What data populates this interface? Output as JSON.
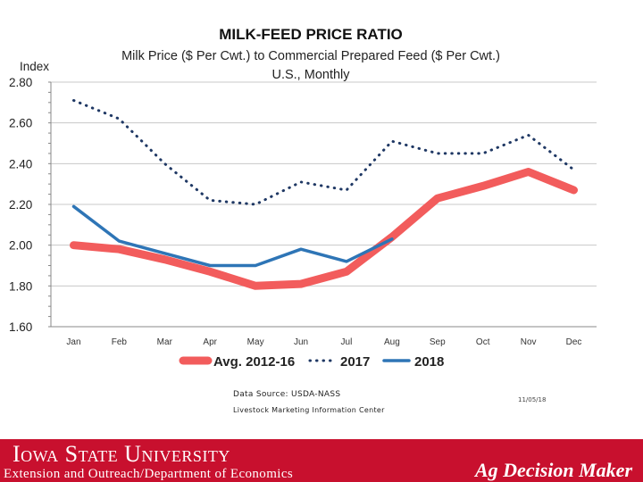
{
  "chart_data": {
    "type": "line",
    "title": "MILK-FEED PRICE RATIO",
    "subtitle_lines": [
      "Milk Price ($ Per Cwt.) to Commercial Prepared Feed ($ Per Cwt.)",
      "U.S., Monthly"
    ],
    "ylabel": "Index",
    "ylim": [
      1.6,
      2.8
    ],
    "yticks": [
      "2.80",
      "2.60",
      "2.40",
      "2.20",
      "2.00",
      "1.80",
      "1.60"
    ],
    "ytick_values": [
      2.8,
      2.6,
      2.4,
      2.2,
      2.0,
      1.8,
      1.6
    ],
    "categories": [
      "Jan",
      "Feb",
      "Mar",
      "Apr",
      "May",
      "Jun",
      "Jul",
      "Aug",
      "Sep",
      "Oct",
      "Nov",
      "Dec"
    ],
    "grid": true,
    "legend_position": "bottom",
    "series": [
      {
        "name": "Avg. 2012-16",
        "color": "#f25c5c",
        "style": "thick",
        "values": [
          2.0,
          1.98,
          1.93,
          1.87,
          1.8,
          1.81,
          1.87,
          2.04,
          2.23,
          2.29,
          2.36,
          2.27
        ]
      },
      {
        "name": "2017",
        "color": "#1f3864",
        "style": "dotted",
        "values": [
          2.71,
          2.62,
          2.4,
          2.22,
          2.2,
          2.31,
          2.27,
          2.51,
          2.45,
          2.45,
          2.54,
          2.37
        ]
      },
      {
        "name": "2018",
        "color": "#2e75b6",
        "style": "solid",
        "values": [
          2.19,
          2.02,
          1.96,
          1.9,
          1.9,
          1.98,
          1.92,
          2.03,
          null,
          null,
          null,
          null
        ]
      }
    ]
  },
  "source": {
    "line1": "Data Source:  USDA-NASS",
    "line2": "Livestock Marketing Information Center",
    "date": "11/05/18"
  },
  "footer": {
    "university": "Iowa State University",
    "extension": "Extension and Outreach/Department of Economics",
    "brand": "Ag Decision Maker",
    "bg_color": "#c8102e"
  }
}
